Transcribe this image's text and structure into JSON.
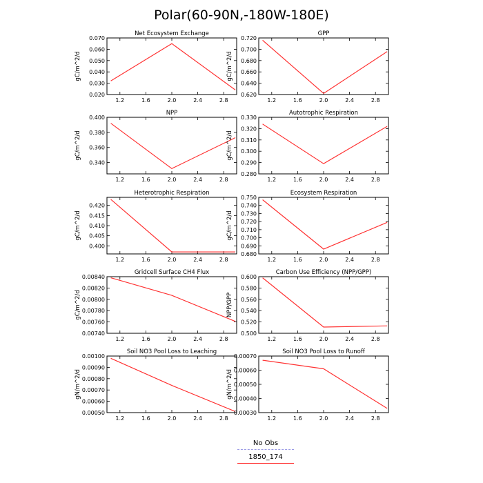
{
  "figure": {
    "title": "Polar(60-90N,-180W-180E)"
  },
  "legend": {
    "items": [
      {
        "label": "No Obs",
        "color": "#9a9ae6",
        "style": "dashed"
      },
      {
        "label": "1850_174",
        "color": "#ff3333",
        "style": "solid"
      }
    ]
  },
  "chart_data": [
    {
      "type": "line",
      "title": "Net Ecosystem Exchange",
      "ylabel": "gC/m^2/d",
      "xlabel": "",
      "xlim": [
        1.0,
        3.0
      ],
      "ylim": [
        0.02,
        0.07
      ],
      "xticks": [
        "1.2",
        "1.6",
        "2.0",
        "2.4",
        "2.8"
      ],
      "yticks": [
        "0.020",
        "0.030",
        "0.040",
        "0.050",
        "0.060",
        "0.070"
      ],
      "series": [
        {
          "name": "1850_174",
          "x": [
            1.06,
            2.0,
            2.98
          ],
          "values": [
            0.032,
            0.065,
            0.024
          ]
        }
      ]
    },
    {
      "type": "line",
      "title": "GPP",
      "ylabel": "gC/m^2/d",
      "xlabel": "",
      "xlim": [
        1.0,
        3.0
      ],
      "ylim": [
        0.62,
        0.72
      ],
      "xticks": [
        "1.2",
        "1.6",
        "2.0",
        "2.4",
        "2.8"
      ],
      "yticks": [
        "0.620",
        "0.640",
        "0.660",
        "0.680",
        "0.700",
        "0.720"
      ],
      "series": [
        {
          "name": "1850_174",
          "x": [
            1.06,
            2.0,
            2.98
          ],
          "values": [
            0.716,
            0.622,
            0.696
          ]
        }
      ]
    },
    {
      "type": "line",
      "title": "NPP",
      "ylabel": "gC/m^2/d",
      "xlabel": "",
      "xlim": [
        1.0,
        3.0
      ],
      "ylim": [
        0.325,
        0.4
      ],
      "xticks": [
        "1.2",
        "1.6",
        "2.0",
        "2.4",
        "2.8"
      ],
      "yticks": [
        "0.340",
        "0.360",
        "0.380",
        "0.400"
      ],
      "series": [
        {
          "name": "1850_174",
          "x": [
            1.06,
            2.0,
            2.98
          ],
          "values": [
            0.392,
            0.332,
            0.373
          ]
        }
      ]
    },
    {
      "type": "line",
      "title": "Autotrophic Respiration",
      "ylabel": "gC/m^2/d",
      "xlabel": "",
      "xlim": [
        1.0,
        3.0
      ],
      "ylim": [
        0.28,
        0.33
      ],
      "xticks": [
        "1.2",
        "1.6",
        "2.0",
        "2.4",
        "2.8"
      ],
      "yticks": [
        "0.280",
        "0.290",
        "0.300",
        "0.310",
        "0.320",
        "0.330"
      ],
      "series": [
        {
          "name": "1850_174",
          "x": [
            1.06,
            2.0,
            2.98
          ],
          "values": [
            0.324,
            0.289,
            0.322
          ]
        }
      ]
    },
    {
      "type": "line",
      "title": "Heterotrophic Respiration",
      "ylabel": "gC/m^2/d",
      "xlabel": "",
      "xlim": [
        1.0,
        3.0
      ],
      "ylim": [
        0.396,
        0.424
      ],
      "xticks": [
        "1.2",
        "1.6",
        "2.0",
        "2.4",
        "2.8"
      ],
      "yticks": [
        "0.400",
        "0.405",
        "0.410",
        "0.415",
        "0.420"
      ],
      "series": [
        {
          "name": "1850_174",
          "x": [
            1.06,
            2.0,
            2.98
          ],
          "values": [
            0.423,
            0.397,
            0.397
          ]
        }
      ]
    },
    {
      "type": "line",
      "title": "Ecosystem Respiration",
      "ylabel": "gC/m^2/d",
      "xlabel": "",
      "xlim": [
        1.0,
        3.0
      ],
      "ylim": [
        0.68,
        0.75
      ],
      "xticks": [
        "1.2",
        "1.6",
        "2.0",
        "2.4",
        "2.8"
      ],
      "yticks": [
        "0.680",
        "0.690",
        "0.700",
        "0.710",
        "0.720",
        "0.730",
        "0.740",
        "0.750"
      ],
      "series": [
        {
          "name": "1850_174",
          "x": [
            1.06,
            2.0,
            2.98
          ],
          "values": [
            0.747,
            0.686,
            0.719
          ]
        }
      ]
    },
    {
      "type": "line",
      "title": "Gridcell Surface CH4 Flux",
      "ylabel": "gC/m^2/d",
      "xlabel": "",
      "xlim": [
        1.0,
        3.0
      ],
      "ylim": [
        0.0074,
        0.0084
      ],
      "xticks": [
        "1.2",
        "1.6",
        "2.0",
        "2.4",
        "2.8"
      ],
      "yticks": [
        "0.00740",
        "0.00760",
        "0.00780",
        "0.00800",
        "0.00820",
        "0.00840"
      ],
      "series": [
        {
          "name": "1850_174",
          "x": [
            1.06,
            2.0,
            2.98
          ],
          "values": [
            0.00838,
            0.00807,
            0.00761
          ]
        }
      ]
    },
    {
      "type": "line",
      "title": "Carbon Use Efficiency (NPP/GPP)",
      "ylabel": "NPP/GPP",
      "xlabel": "",
      "xlim": [
        1.0,
        3.0
      ],
      "ylim": [
        0.5,
        0.6
      ],
      "xticks": [
        "1.2",
        "1.6",
        "2.0",
        "2.4",
        "2.8"
      ],
      "yticks": [
        "0.500",
        "0.520",
        "0.540",
        "0.560",
        "0.580",
        "0.600"
      ],
      "series": [
        {
          "name": "1850_174",
          "x": [
            1.06,
            2.0,
            2.98
          ],
          "values": [
            0.598,
            0.511,
            0.513
          ]
        }
      ]
    },
    {
      "type": "line",
      "title": "Soil NO3 Pool Loss to Leaching",
      "ylabel": "gN/m^2/d",
      "xlabel": "",
      "xlim": [
        1.0,
        3.0
      ],
      "ylim": [
        0.0005,
        0.001
      ],
      "xticks": [
        "1.2",
        "1.6",
        "2.0",
        "2.4",
        "2.8"
      ],
      "yticks": [
        "0.00050",
        "0.00060",
        "0.00070",
        "0.00080",
        "0.00090",
        "0.00100"
      ],
      "series": [
        {
          "name": "1850_174",
          "x": [
            1.06,
            2.0,
            2.98
          ],
          "values": [
            0.00098,
            0.00074,
            0.00051
          ]
        }
      ]
    },
    {
      "type": "line",
      "title": "Soil NO3 Pool Loss to Runoff",
      "ylabel": "gN/m^2/d",
      "xlabel": "",
      "xlim": [
        1.0,
        3.0
      ],
      "ylim": [
        0.0003,
        0.0007
      ],
      "xticks": [
        "1.2",
        "1.6",
        "2.0",
        "2.4",
        "2.8"
      ],
      "yticks": [
        "0.00030",
        "0.00040",
        "0.00050",
        "0.00060",
        "0.00070"
      ],
      "series": [
        {
          "name": "1850_174",
          "x": [
            1.06,
            2.0,
            2.98
          ],
          "values": [
            0.00067,
            0.00061,
            0.00033
          ]
        }
      ]
    }
  ]
}
